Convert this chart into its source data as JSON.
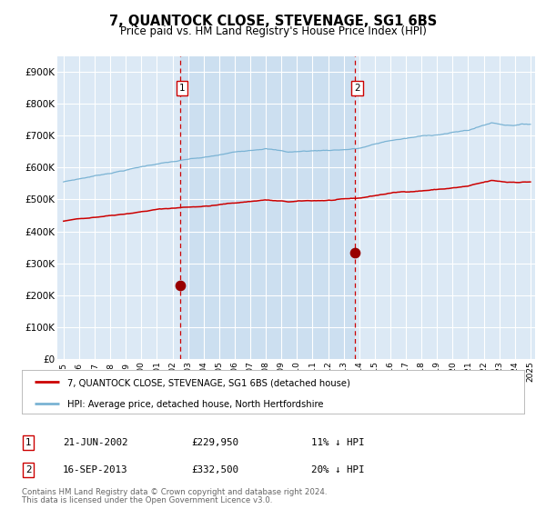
{
  "title": "7, QUANTOCK CLOSE, STEVENAGE, SG1 6BS",
  "subtitle": "Price paid vs. HM Land Registry's House Price Index (HPI)",
  "legend_line1": "7, QUANTOCK CLOSE, STEVENAGE, SG1 6BS (detached house)",
  "legend_line2": "HPI: Average price, detached house, North Hertfordshire",
  "footnote1": "Contains HM Land Registry data © Crown copyright and database right 2024.",
  "footnote2": "This data is licensed under the Open Government Licence v3.0.",
  "sale1_date": "21-JUN-2002",
  "sale1_price": "£229,950",
  "sale1_hpi": "11% ↓ HPI",
  "sale1_year": 2002.47,
  "sale1_value": 229950,
  "sale2_date": "16-SEP-2013",
  "sale2_price": "£332,500",
  "sale2_hpi": "20% ↓ HPI",
  "sale2_year": 2013.71,
  "sale2_value": 332500,
  "hpi_color": "#7ab3d4",
  "price_color": "#cc0000",
  "marker_color": "#990000",
  "plot_bg": "#dce9f5",
  "highlight_bg": "#ccdff0",
  "grid_color": "#ffffff",
  "dashed_line_color": "#cc0000",
  "ylim": [
    0,
    950000
  ],
  "yticks": [
    0,
    100000,
    200000,
    300000,
    400000,
    500000,
    600000,
    700000,
    800000,
    900000
  ],
  "ytick_labels": [
    "£0",
    "£100K",
    "£200K",
    "£300K",
    "£400K",
    "£500K",
    "£600K",
    "£700K",
    "£800K",
    "£900K"
  ],
  "xstart": 1995,
  "xend": 2025
}
